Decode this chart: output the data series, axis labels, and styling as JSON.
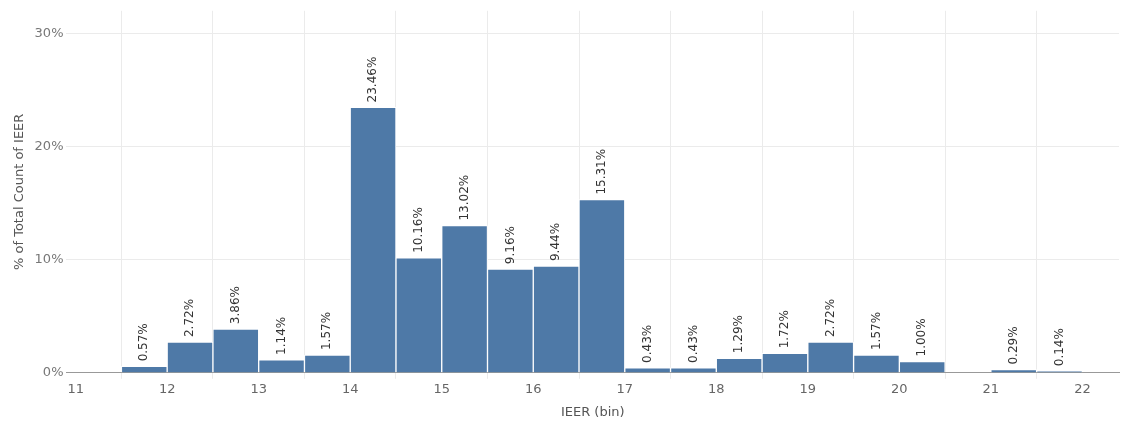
{
  "chart_data": {
    "type": "histogram",
    "xlabel": "IEER (bin)",
    "ylabel": "% of Total Count of IEER",
    "bins": [
      11.5,
      12,
      12.5,
      13,
      13.5,
      14,
      14.5,
      15,
      15.5,
      16,
      16.5,
      17,
      17.5,
      18,
      18.5,
      19,
      19.5,
      20,
      20.5,
      21,
      21.5,
      22
    ],
    "values": [
      0.57,
      2.72,
      3.86,
      1.14,
      1.57,
      23.46,
      10.16,
      13.02,
      9.16,
      9.44,
      15.31,
      0.43,
      0.43,
      1.29,
      1.72,
      2.72,
      1.57,
      1.0,
      0,
      0.29,
      0.14
    ],
    "value_labels": [
      "0.57%",
      "2.72%",
      "3.86%",
      "1.14%",
      "1.57%",
      "23.46%",
      "10.16%",
      "13.02%",
      "9.16%",
      "9.44%",
      "15.31%",
      "0.43%",
      "0.43%",
      "1.29%",
      "1.72%",
      "2.72%",
      "1.57%",
      "1.00%",
      null,
      "0.29%",
      "0.14%"
    ],
    "color": "#4e79a7",
    "xlim": [
      10.9,
      22.4
    ],
    "xticks": [
      11,
      12,
      13,
      14,
      15,
      16,
      17,
      18,
      19,
      20,
      21,
      22
    ],
    "ylim": [
      0,
      32
    ],
    "yticks": [
      {
        "value": 0,
        "label": "0%"
      },
      {
        "value": 10,
        "label": "10%"
      },
      {
        "value": 20,
        "label": "20%"
      },
      {
        "value": 30,
        "label": "30%"
      }
    ],
    "grid": true,
    "legend": false
  }
}
